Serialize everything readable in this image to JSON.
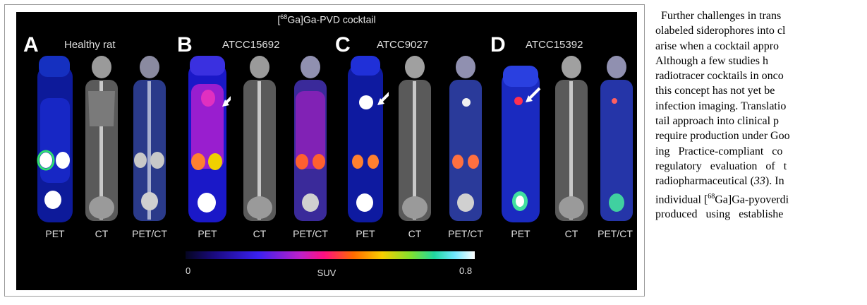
{
  "figure": {
    "title_sup": "68",
    "title_rest": "Ga]Ga-PVD cocktail",
    "panels": [
      {
        "letter": "A",
        "label": "Healthy rat"
      },
      {
        "letter": "B",
        "label": "ATCC15692"
      },
      {
        "letter": "C",
        "label": "ATCC9027"
      },
      {
        "letter": "D",
        "label": "ATCC15392"
      }
    ],
    "modalities": [
      "PET",
      "CT",
      "PET/CT"
    ],
    "scale": {
      "min": "0",
      "label": "SUV",
      "max": "0.8"
    }
  },
  "body_text": {
    "lines": [
      "Further challenges in trans",
      "olabeled siderophores into cl",
      "arise when a cocktail appro",
      "Although a few studies h",
      "radiotracer cocktails in onco",
      "this concept has not yet be",
      "infection imaging. Translatio",
      "tail approach into clinical p",
      "require production under Goo",
      "ing   Practice-compliant   co",
      "regulatory   evaluation   of   t"
    ],
    "line12_a": "radiopharmaceutical (",
    "line12_cite": "33",
    "line12_b": "). In",
    "line13_a": "individual [",
    "line13_sup": "68",
    "line13_b": "Ga]Ga-pyoverdi",
    "line14": "produced   using   establishe"
  }
}
